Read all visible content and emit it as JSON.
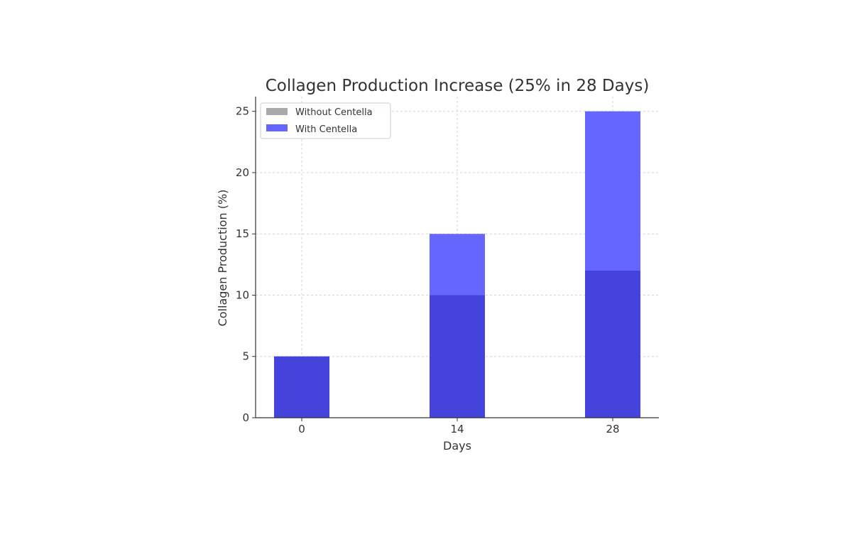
{
  "chart_data": {
    "type": "bar",
    "title": "Collagen Production Increase (25% in 28 Days)",
    "xlabel": "Days",
    "ylabel": "Collagen Production (%)",
    "categories": [
      "0",
      "14",
      "28"
    ],
    "series": [
      {
        "name": "Without Centella",
        "values": [
          5,
          10,
          12
        ],
        "color": "#a9a9a9"
      },
      {
        "name": "With Centella",
        "values": [
          5,
          15,
          25
        ],
        "color": "#6565ff"
      }
    ],
    "overlap_color": "#4444dd",
    "ylim": [
      0,
      26.2
    ],
    "yticks": [
      0,
      5,
      10,
      15,
      20,
      25
    ],
    "grid": true,
    "legend": "top-left"
  }
}
